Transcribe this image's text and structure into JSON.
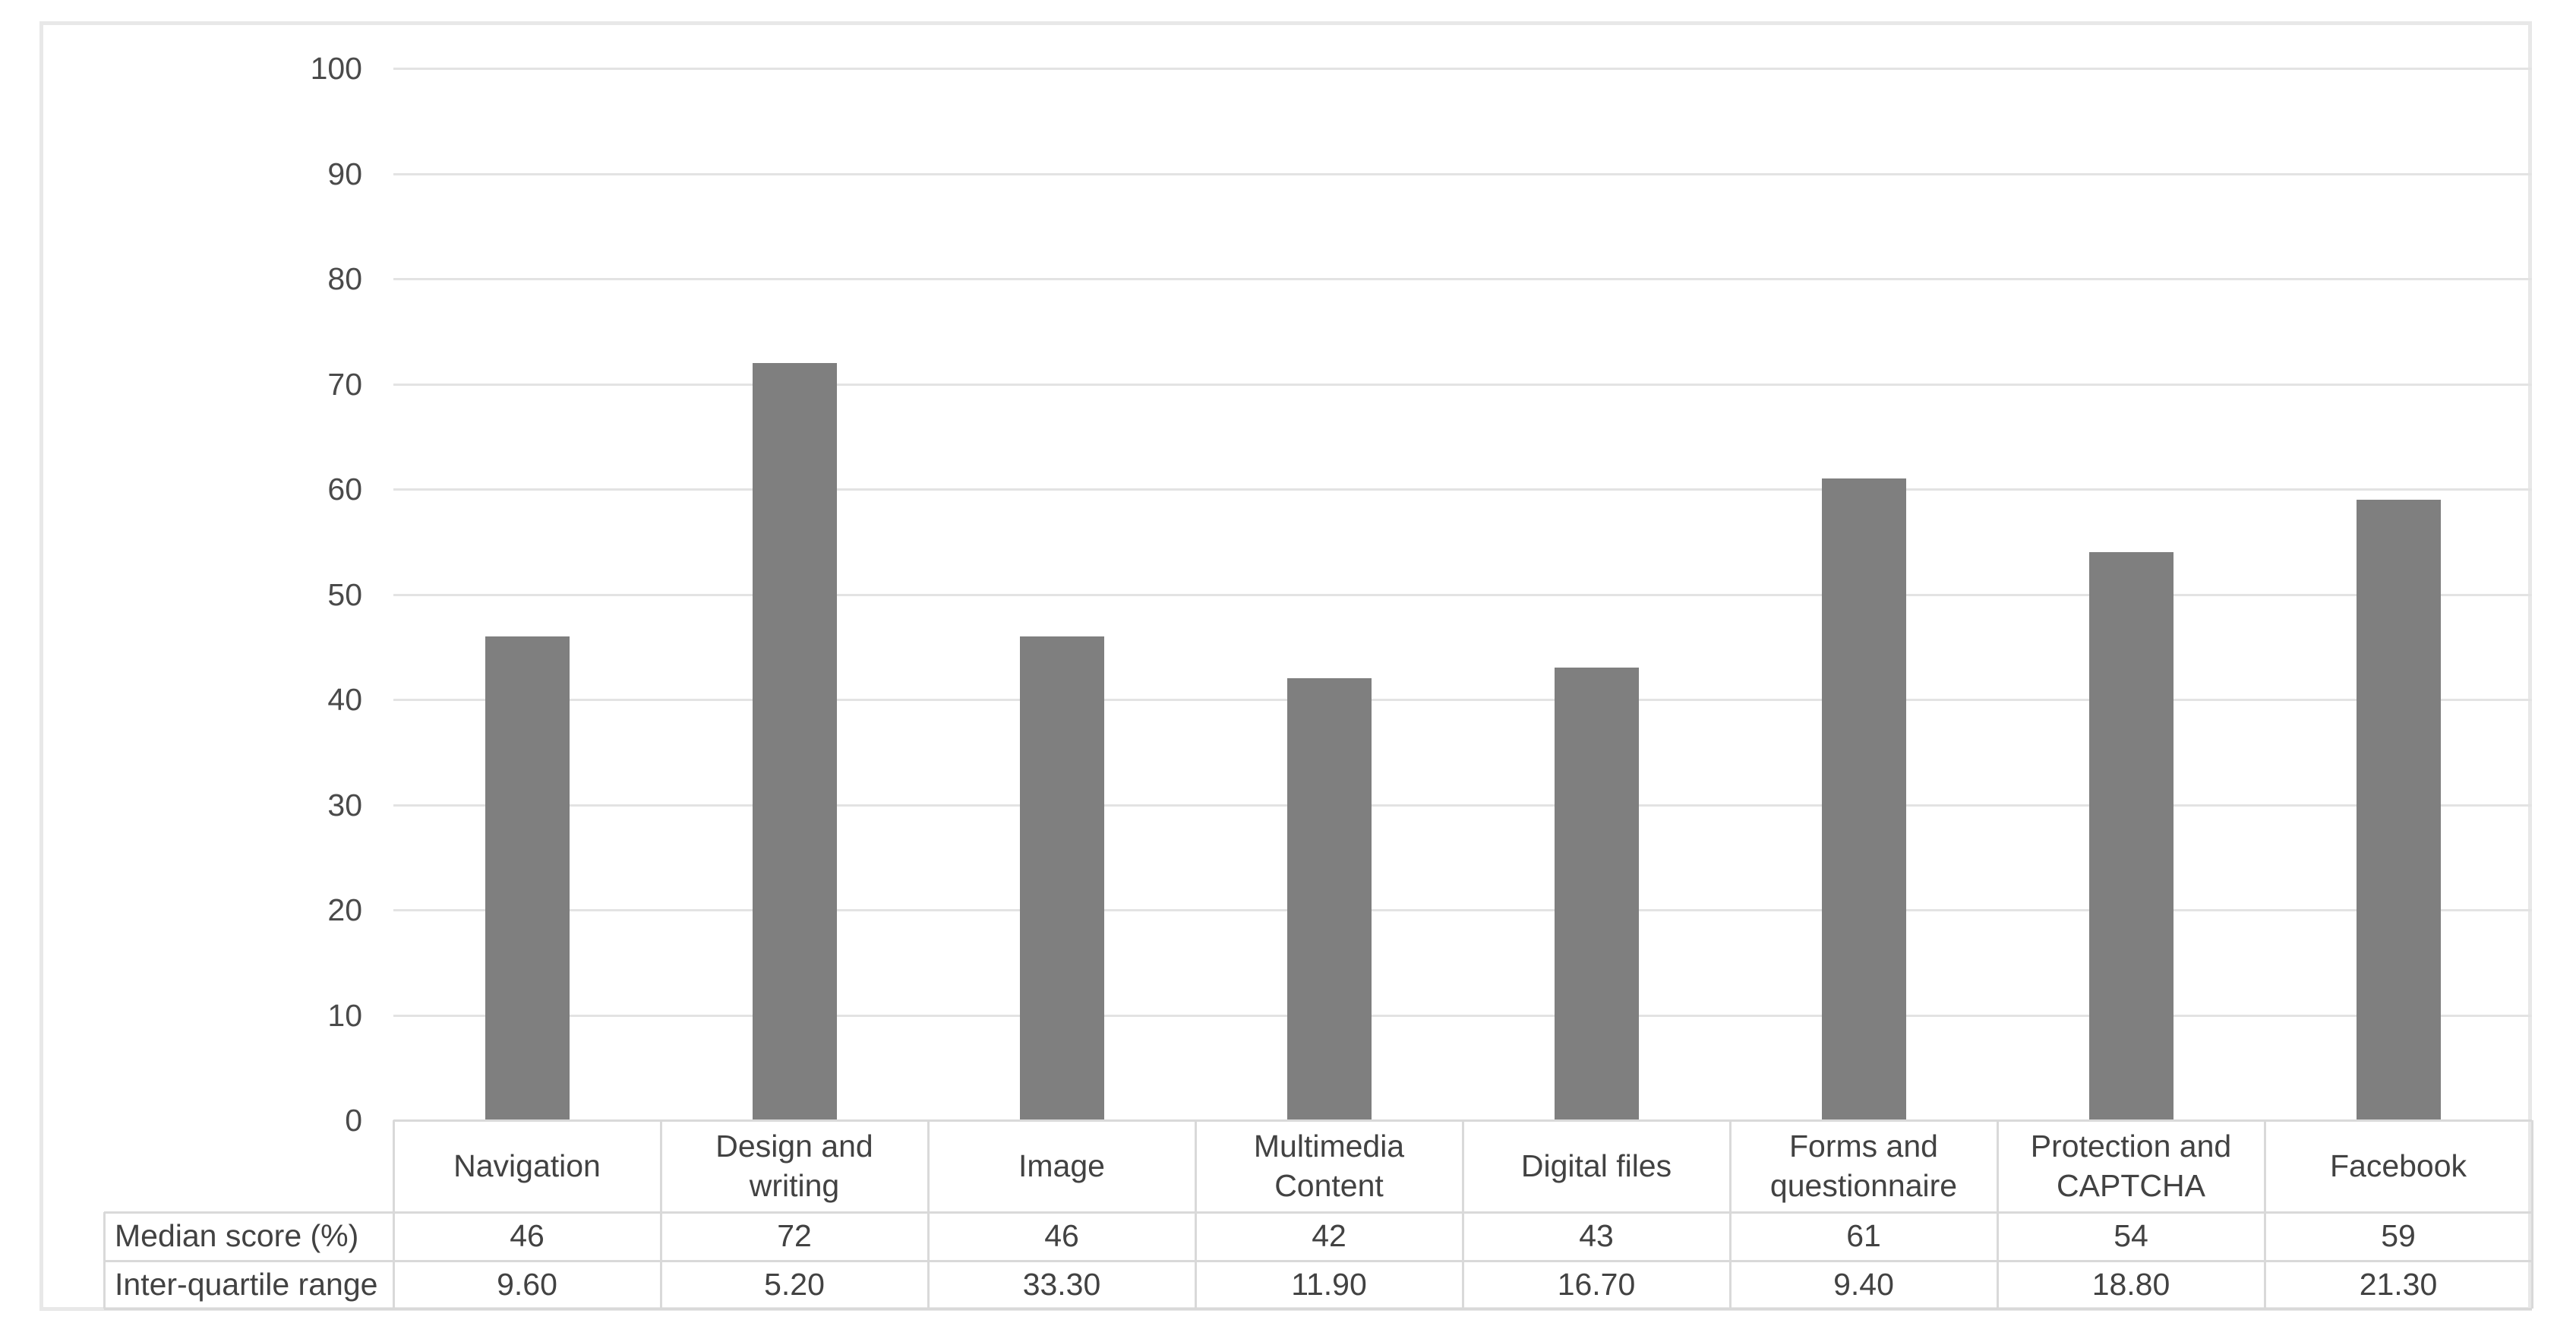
{
  "colors": {
    "bar": "#7f7f7f",
    "gridline": "#e3e3e3",
    "table_border": "#d9d9d9",
    "figure_border": "#e8e8e8",
    "text": "#424242"
  },
  "chart_data": {
    "type": "bar",
    "title": "",
    "xlabel": "",
    "ylabel": "",
    "categories": [
      "Navigation",
      "Design and writing",
      "Image",
      "Multimedia Content",
      "Digital files",
      "Forms and questionnaire",
      "Protection and CAPTCHA",
      "Facebook"
    ],
    "series": [
      {
        "name": "Median score (%)",
        "values": [
          46,
          72,
          46,
          42,
          43,
          61,
          54,
          59
        ],
        "display": [
          "46",
          "72",
          "46",
          "42",
          "43",
          "61",
          "54",
          "59"
        ]
      },
      {
        "name": "Inter-quartile range",
        "values": [
          9.6,
          5.2,
          33.3,
          11.9,
          16.7,
          9.4,
          18.8,
          21.3
        ],
        "display": [
          "9.60",
          "5.20",
          "33.30",
          "11.90",
          "16.70",
          "9.40",
          "18.80",
          "21.30"
        ]
      }
    ],
    "bar_series_index": 0,
    "ylim": [
      0,
      100
    ],
    "yticks": [
      0,
      10,
      20,
      30,
      40,
      50,
      60,
      70,
      80,
      90,
      100
    ],
    "grid": true,
    "legend_position": "none",
    "data_table_below_axis": true
  }
}
